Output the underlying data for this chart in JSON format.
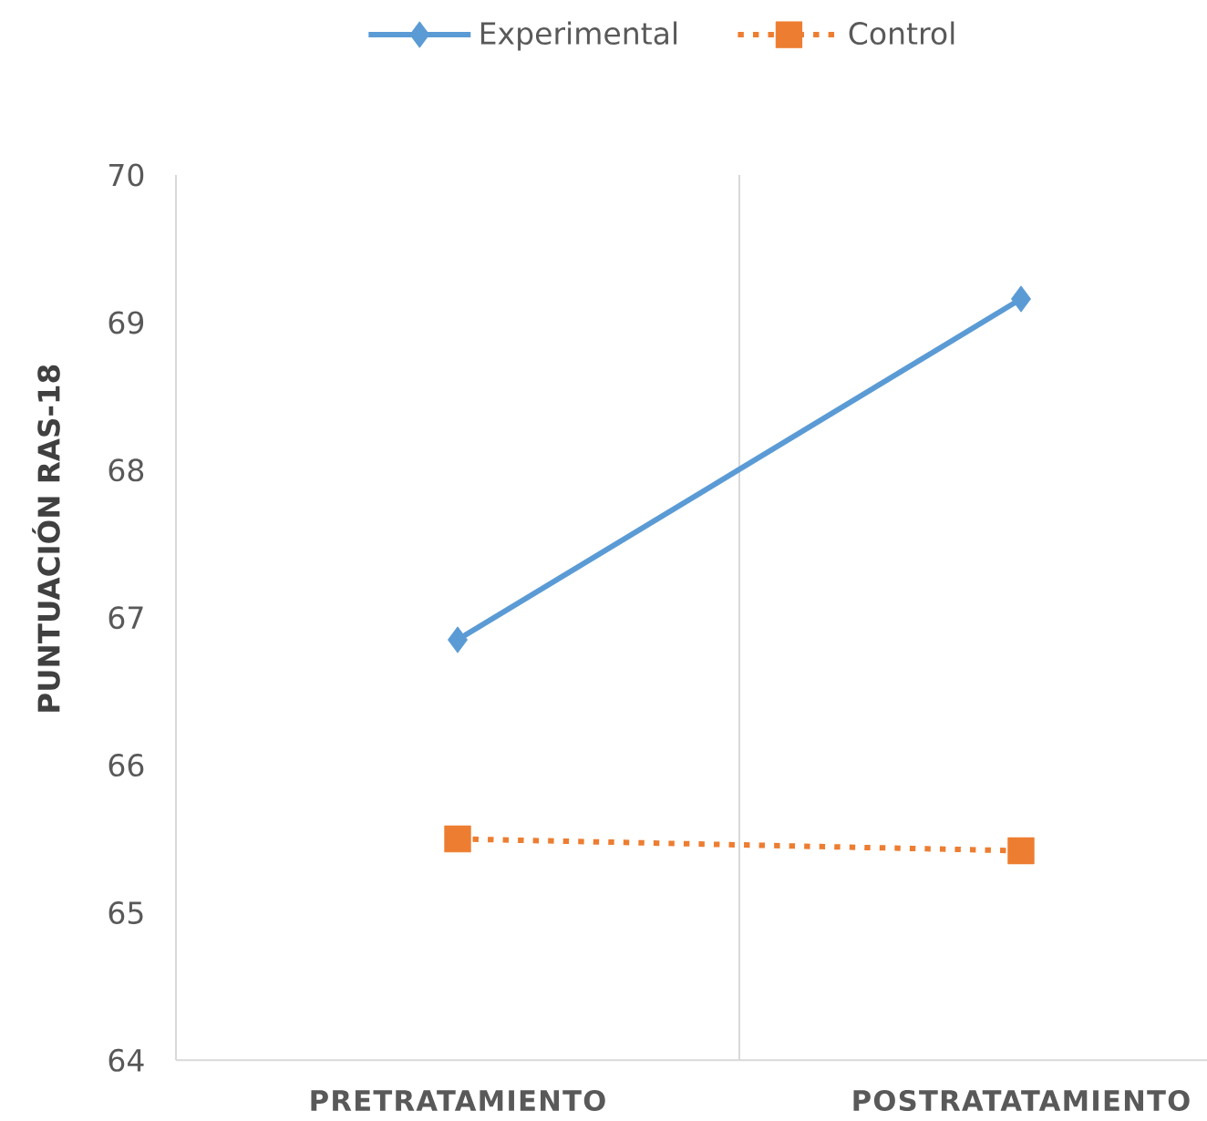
{
  "chart_data": {
    "type": "line",
    "ylabel": "PUNTUACIÓN RAS-18",
    "categories": [
      "PRETRATAMIENTO",
      "POSTRATATAMIENTO"
    ],
    "series": [
      {
        "name": "Experimental",
        "color": "#5b9bd5",
        "values": [
          66.85,
          69.16
        ],
        "marker": "diamond",
        "line_style": "solid"
      },
      {
        "name": "Control",
        "color": "#ed7d31",
        "values": [
          65.5,
          65.42
        ],
        "marker": "square",
        "line_style": "dotted"
      }
    ],
    "ylim": [
      64,
      70
    ],
    "yticks": [
      64,
      65,
      66,
      67,
      68,
      69,
      70
    ],
    "grid": "x",
    "legend": "top"
  }
}
